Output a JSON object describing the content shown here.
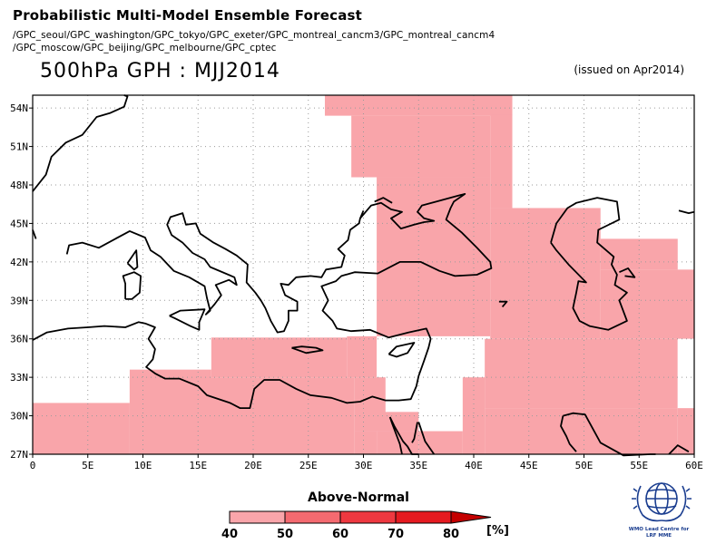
{
  "header": {
    "title": "Probabilistic Multi-Model Ensemble Forecast",
    "models_line1": "/GPC_seoul/GPC_washington/GPC_tokyo/GPC_exeter/GPC_montreal_cancm3/GPC_montreal_cancm4",
    "models_line2": "/GPC_moscow/GPC_beijing/GPC_melbourne/GPC_cptec",
    "variable_title": "500hPa GPH : MJJ2014",
    "issued": "(issued on Apr2014)"
  },
  "map": {
    "lon_range": [
      0,
      60
    ],
    "lat_range": [
      27,
      55
    ],
    "lon_ticks": [
      "0",
      "5E",
      "10E",
      "15E",
      "20E",
      "25E",
      "30E",
      "35E",
      "40E",
      "45E",
      "50E",
      "55E",
      "60E"
    ],
    "lat_ticks": [
      "27N",
      "30N",
      "33N",
      "36N",
      "39N",
      "42N",
      "45N",
      "48N",
      "51N",
      "54N"
    ],
    "shade_color": "#f9a5aa",
    "coast_color": "#000000",
    "grid_color": "#9a9a9a",
    "shaded_region_note": "Above-Normal probability 40-50%"
  },
  "legend": {
    "title": "Above-Normal",
    "labels": [
      "40",
      "50",
      "60",
      "70",
      "80"
    ],
    "unit": "[%]",
    "colors": [
      "#f9a5aa",
      "#f46a70",
      "#ee3840",
      "#e51a20",
      "#e50000",
      "#c40000"
    ]
  },
  "logo": {
    "line1": "WMO Lead Centre for",
    "line2": "LRF MME"
  }
}
